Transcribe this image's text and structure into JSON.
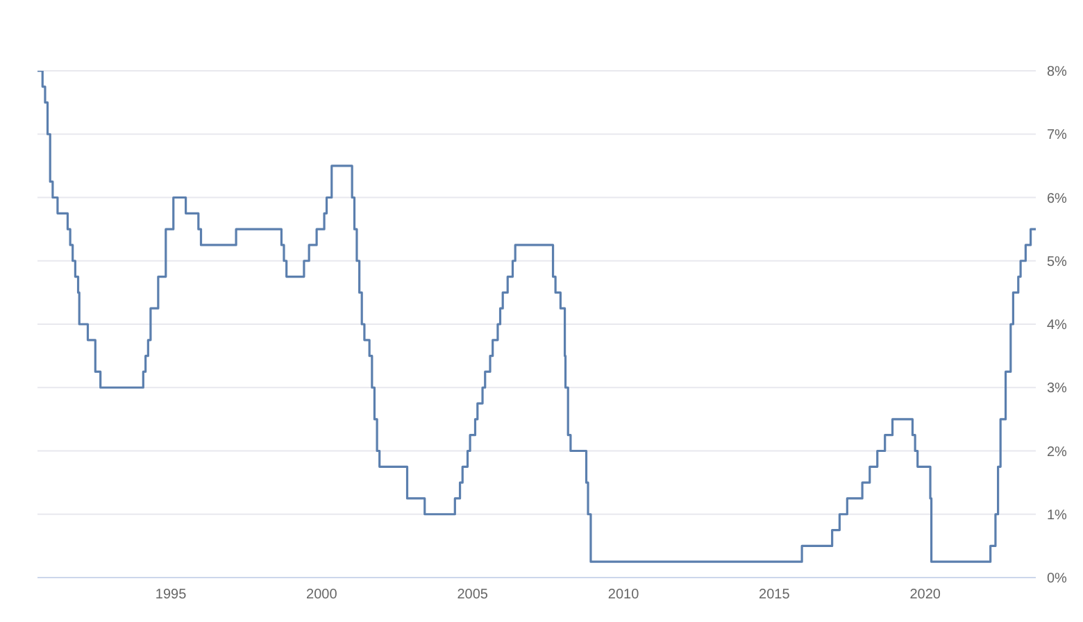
{
  "chart_data": {
    "type": "step",
    "x": [
      "1990-08",
      "1990-10",
      "1990-11",
      "1990-12",
      "1991-01",
      "1991-02",
      "1991-04",
      "1991-08",
      "1991-09",
      "1991-10",
      "1991-11",
      "1991-12-06",
      "1991-12-20",
      "1992-04",
      "1992-07",
      "1992-09",
      "1994-02",
      "1994-03",
      "1994-04",
      "1994-05",
      "1994-08",
      "1994-11",
      "1995-02",
      "1995-07",
      "1995-12",
      "1996-01",
      "1997-03",
      "1998-09",
      "1998-10",
      "1998-11",
      "1999-06",
      "1999-08",
      "1999-11",
      "2000-02",
      "2000-03",
      "2000-05",
      "2001-01-03",
      "2001-01-31",
      "2001-03",
      "2001-04",
      "2001-05",
      "2001-06",
      "2001-08",
      "2001-09",
      "2001-10",
      "2001-11",
      "2001-12",
      "2002-11",
      "2003-06",
      "2004-06",
      "2004-08",
      "2004-09",
      "2004-11",
      "2004-12",
      "2005-02",
      "2005-03",
      "2005-05",
      "2005-06",
      "2005-08",
      "2005-09",
      "2005-11",
      "2005-12",
      "2006-01",
      "2006-03",
      "2006-05",
      "2006-06",
      "2007-09",
      "2007-10",
      "2007-12",
      "2008-01-22",
      "2008-01-30",
      "2008-03",
      "2008-04",
      "2008-10-08",
      "2008-10-29",
      "2008-12",
      "2015-12",
      "2016-12",
      "2017-03",
      "2017-06",
      "2017-12",
      "2018-03",
      "2018-06",
      "2018-09",
      "2018-12",
      "2019-08",
      "2019-09",
      "2019-10",
      "2020-03-03",
      "2020-03-16",
      "2022-03",
      "2022-05",
      "2022-06",
      "2022-07",
      "2022-09",
      "2022-11",
      "2022-12",
      "2023-02",
      "2023-03",
      "2023-05",
      "2023-07",
      "2023-09"
    ],
    "series": [
      {
        "color": "#5b7fae",
        "values": [
          8,
          7.75,
          7.5,
          7,
          6.25,
          6,
          5.75,
          5.5,
          5.25,
          5,
          4.75,
          4.5,
          4,
          3.75,
          3.25,
          3,
          3.25,
          3.5,
          3.75,
          4.25,
          4.75,
          5.5,
          6,
          5.75,
          5.5,
          5.25,
          5.5,
          5.25,
          5,
          4.75,
          5,
          5.25,
          5.5,
          5.75,
          6,
          6.5,
          6,
          5.5,
          5,
          4.5,
          4,
          3.75,
          3.5,
          3,
          2.5,
          2,
          1.75,
          1.25,
          1,
          1.25,
          1.5,
          1.75,
          2,
          2.25,
          2.5,
          2.75,
          3,
          3.25,
          3.5,
          3.75,
          4,
          4.25,
          4.5,
          4.75,
          5,
          5.25,
          4.75,
          4.5,
          4.25,
          3.5,
          3,
          2.25,
          2,
          1.5,
          1,
          0.25,
          0.5,
          0.75,
          1,
          1.25,
          1.5,
          1.75,
          2,
          2.25,
          2.5,
          2.25,
          2,
          1.75,
          1.25,
          0.25,
          0.5,
          1,
          1.75,
          2.5,
          3.25,
          4,
          4.5,
          4.75,
          5,
          5.25,
          5.5,
          5.5
        ]
      }
    ],
    "xlim": [
      "1990-08",
      "2023-09"
    ],
    "xticks": [
      "1995",
      "2000",
      "2005",
      "2010",
      "2015",
      "2020"
    ],
    "ylim": [
      0,
      8
    ],
    "yticks": [
      {
        "value": 0,
        "label": "0%"
      },
      {
        "value": 1,
        "label": "1%"
      },
      {
        "value": 2,
        "label": "2%"
      },
      {
        "value": 3,
        "label": "3%"
      },
      {
        "value": 4,
        "label": "4%"
      },
      {
        "value": 5,
        "label": "5%"
      },
      {
        "value": 6,
        "label": "6%"
      },
      {
        "value": 7,
        "label": "7%"
      },
      {
        "value": 8,
        "label": "8%"
      }
    ],
    "grid": "y",
    "legend": false,
    "marker": "none",
    "line_style": "solid"
  }
}
